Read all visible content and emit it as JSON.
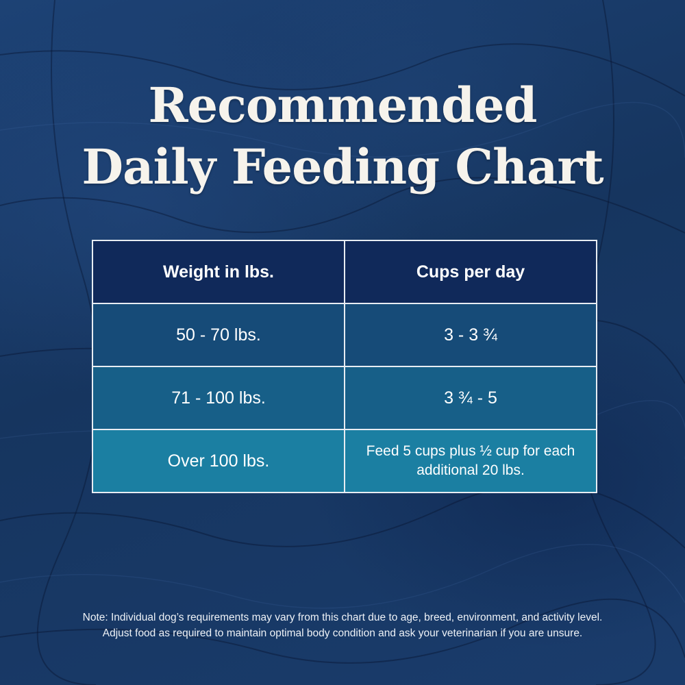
{
  "title": {
    "line1": "Recommended",
    "line2": "Daily Feeding Chart"
  },
  "table": {
    "headers": [
      "Weight in lbs.",
      "Cups per day"
    ],
    "rows": [
      {
        "weight": "50 - 70 lbs.",
        "cups": "3 - 3 ¾"
      },
      {
        "weight": "71 - 100 lbs.",
        "cups": "3 ¾ - 5"
      },
      {
        "weight": "Over 100 lbs.",
        "cups": "Feed 5 cups plus ½ cup for each additional 20 lbs."
      }
    ]
  },
  "note": {
    "line1": "Note: Individual dog’s requirements may vary from this chart due to age, breed, environment, and activity level.",
    "line2": "Adjust food as required to maintain optimal body condition and ask your veterinarian if you are unsure."
  },
  "colors": {
    "background": "#1a3a66",
    "header_bg": "#10295a",
    "row1_bg": "#164b78",
    "row2_bg": "#175f88",
    "row3_bg": "#1b7fa2",
    "text": "#ffffff"
  }
}
